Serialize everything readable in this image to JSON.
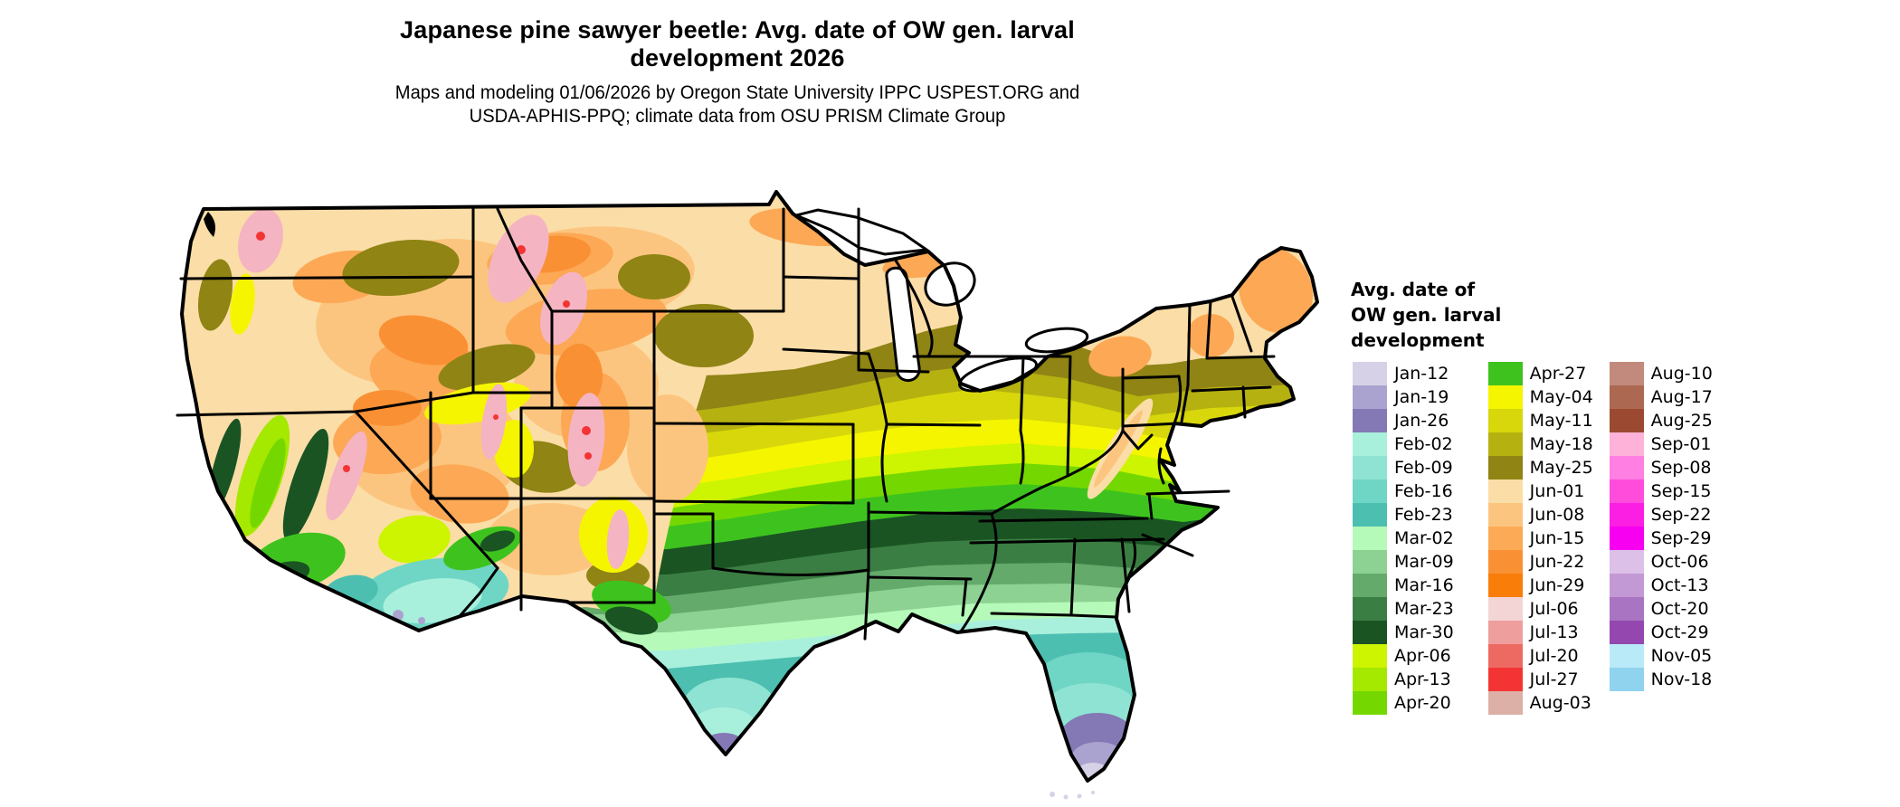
{
  "title": {
    "line1": "Japanese pine sawyer beetle: Avg. date of OW gen. larval",
    "line2": "development 2026"
  },
  "subtitle": {
    "line1": "Maps and modeling 01/06/2026 by Oregon State University IPPC USPEST.ORG and",
    "line2": "USDA-APHIS-PPQ; climate data from OSU PRISM Climate Group"
  },
  "legend": {
    "title_lines": [
      "Avg. date of",
      "OW gen. larval",
      "development"
    ],
    "columns": [
      [
        {
          "label": "Jan-12",
          "color": "#d7d1e8"
        },
        {
          "label": "Jan-19",
          "color": "#aba3cf"
        },
        {
          "label": "Jan-26",
          "color": "#8478b5"
        },
        {
          "label": "Feb-02",
          "color": "#a9f0dc"
        },
        {
          "label": "Feb-09",
          "color": "#8fe3d2"
        },
        {
          "label": "Feb-16",
          "color": "#6fd5c5"
        },
        {
          "label": "Feb-23",
          "color": "#4cbfb1"
        },
        {
          "label": "Mar-02",
          "color": "#b6fab9"
        },
        {
          "label": "Mar-09",
          "color": "#8dd293"
        },
        {
          "label": "Mar-16",
          "color": "#63aa6b"
        },
        {
          "label": "Mar-23",
          "color": "#3b7e43"
        },
        {
          "label": "Mar-30",
          "color": "#1a5423"
        },
        {
          "label": "Apr-06",
          "color": "#cdf400"
        },
        {
          "label": "Apr-13",
          "color": "#a5e800"
        },
        {
          "label": "Apr-20",
          "color": "#74d800"
        }
      ],
      [
        {
          "label": "Apr-27",
          "color": "#3ec31e"
        },
        {
          "label": "May-04",
          "color": "#f5f500"
        },
        {
          "label": "May-11",
          "color": "#d7d70b"
        },
        {
          "label": "May-18",
          "color": "#b5b110"
        },
        {
          "label": "May-25",
          "color": "#8f8414"
        },
        {
          "label": "Jun-01",
          "color": "#fbdda7"
        },
        {
          "label": "Jun-08",
          "color": "#fcc57f"
        },
        {
          "label": "Jun-15",
          "color": "#fcaa55"
        },
        {
          "label": "Jun-22",
          "color": "#fa9034"
        },
        {
          "label": "Jun-29",
          "color": "#f87d09"
        },
        {
          "label": "Jul-06",
          "color": "#f3d5d5"
        },
        {
          "label": "Jul-13",
          "color": "#ef9e9e"
        },
        {
          "label": "Jul-20",
          "color": "#ed6a63"
        },
        {
          "label": "Jul-27",
          "color": "#f43434"
        },
        {
          "label": "Aug-03",
          "color": "#dcafa7"
        }
      ],
      [
        {
          "label": "Aug-10",
          "color": "#c28a7c"
        },
        {
          "label": "Aug-17",
          "color": "#ad6852"
        },
        {
          "label": "Aug-25",
          "color": "#9b4a31"
        },
        {
          "label": "Sep-01",
          "color": "#ffb2d9"
        },
        {
          "label": "Sep-08",
          "color": "#ff7fe3"
        },
        {
          "label": "Sep-15",
          "color": "#ff4cda"
        },
        {
          "label": "Sep-22",
          "color": "#fb1fe4"
        },
        {
          "label": "Sep-29",
          "color": "#f700f1"
        },
        {
          "label": "Oct-06",
          "color": "#dcc0e8"
        },
        {
          "label": "Oct-13",
          "color": "#c399d5"
        },
        {
          "label": "Oct-20",
          "color": "#a974c2"
        },
        {
          "label": "Oct-29",
          "color": "#9447ae"
        },
        {
          "label": "Nov-05",
          "color": "#b9eaf8"
        },
        {
          "label": "Nov-18",
          "color": "#8fd3ee"
        }
      ]
    ]
  },
  "map": {
    "region": "Contiguous United States",
    "state_border_color": "#000000",
    "background_color": "#ffffff"
  }
}
